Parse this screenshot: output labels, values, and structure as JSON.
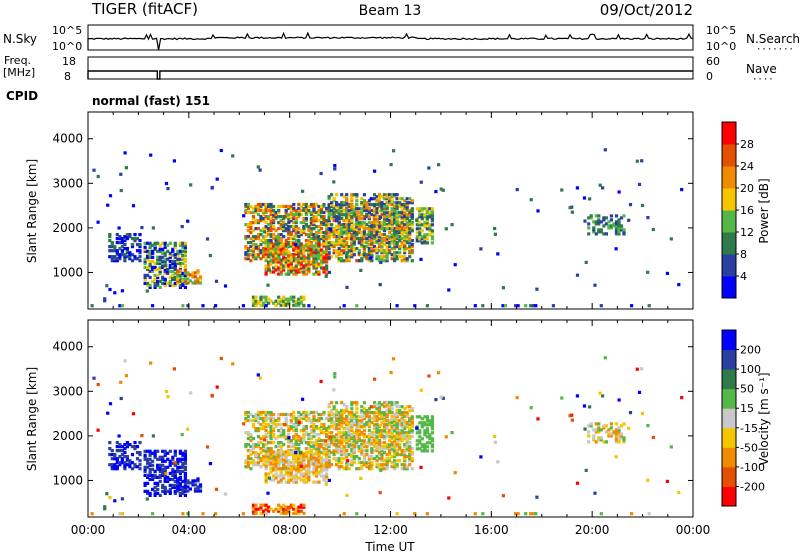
{
  "header": {
    "station": "TIGER (fitACF)",
    "beam": "Beam 13",
    "date": "09/Oct/2012"
  },
  "panels": {
    "nsky": {
      "label": "N.Sky",
      "tick_top": "10^5",
      "tick_bottom": "10^0",
      "right_label": "N.Search",
      "right_dots": "·······"
    },
    "freq": {
      "label_1": "Freq.",
      "label_2": "[MHz]",
      "tick_top": "18",
      "tick_bottom": "8",
      "right_top": "60",
      "right_bottom": "0",
      "right_label": "Nave",
      "right_dots": "····"
    },
    "cpid": {
      "label": "CPID",
      "value": "normal (fast) 151"
    }
  },
  "chart_data": [
    {
      "type": "heatmap",
      "title": "",
      "xlabel": "",
      "ylabel": "Slant Range [km]",
      "xlim": [
        "00:00",
        "24:00"
      ],
      "ylim": [
        180,
        4600
      ],
      "yticks": [
        "1000",
        "2000",
        "3000",
        "4000"
      ],
      "colorbar": {
        "label": "Power [dB]",
        "ticks": [
          "4",
          "8",
          "12",
          "16",
          "20",
          "24",
          "28"
        ],
        "colors": [
          "#0000ff",
          "#2a3fa0",
          "#2e7a4a",
          "#53b848",
          "#f5c500",
          "#f08a00",
          "#e45000",
          "#ff0000"
        ]
      }
    },
    {
      "type": "heatmap",
      "title": "",
      "xlabel": "Time UT",
      "ylabel": "Slant Range [km]",
      "xlim": [
        "00:00",
        "24:00"
      ],
      "ylim": [
        180,
        4600
      ],
      "xticks": [
        "00:00",
        "04:00",
        "08:00",
        "12:00",
        "16:00",
        "20:00",
        "00:00"
      ],
      "yticks": [
        "1000",
        "2000",
        "3000",
        "4000"
      ],
      "colorbar": {
        "label": "Velocity [m s⁻¹]",
        "ticks": [
          "200",
          "100",
          "50",
          "15",
          "-15",
          "-50",
          "-100",
          "-200"
        ],
        "colors": [
          "#0000ff",
          "#2a3fa0",
          "#2e7a4a",
          "#53b848",
          "#c8c8c8",
          "#f5c500",
          "#f08a00",
          "#e45000",
          "#ff0000"
        ]
      }
    }
  ]
}
